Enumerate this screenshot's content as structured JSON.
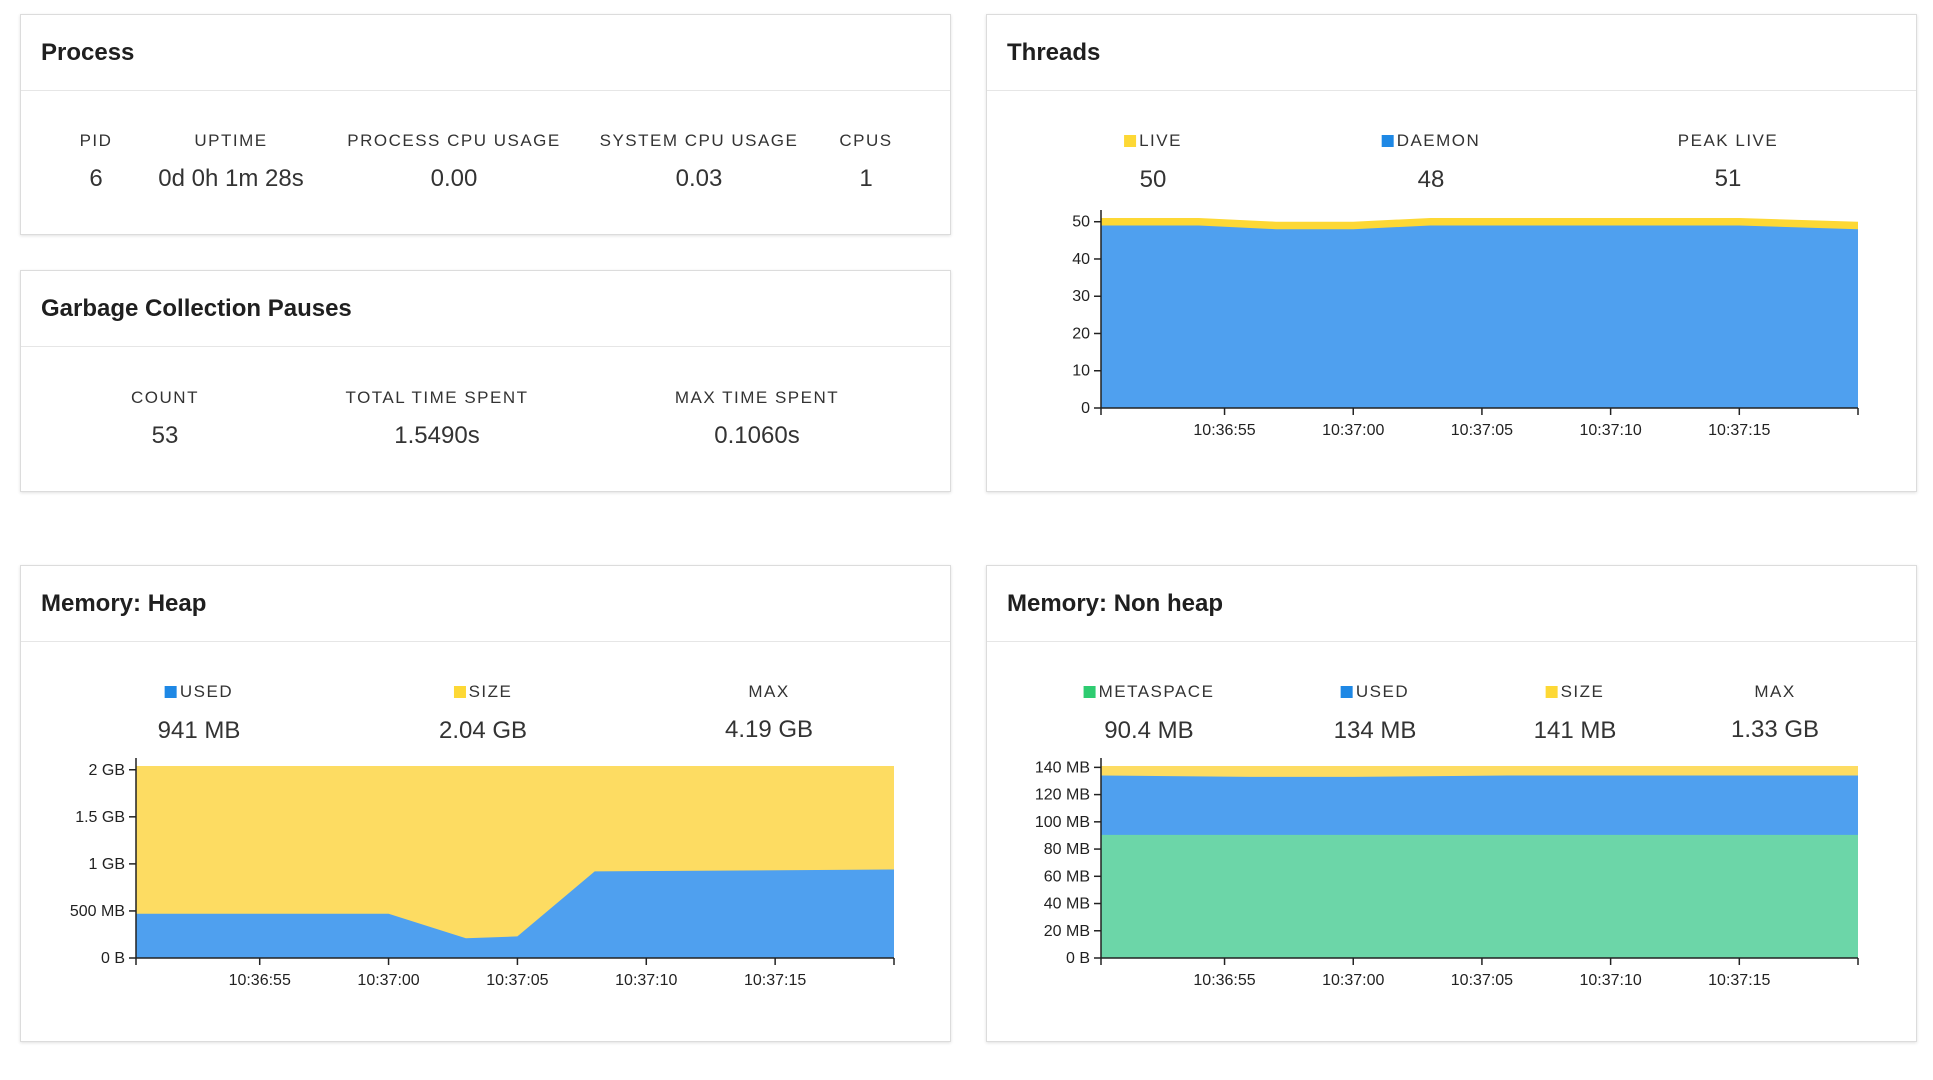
{
  "process": {
    "title": "Process",
    "stats": [
      {
        "label": "PID",
        "value": "6"
      },
      {
        "label": "UPTIME",
        "value": "0d 0h 1m 28s"
      },
      {
        "label": "PROCESS CPU USAGE",
        "value": "0.00"
      },
      {
        "label": "SYSTEM CPU USAGE",
        "value": "0.03"
      },
      {
        "label": "CPUS",
        "value": "1"
      }
    ]
  },
  "gc": {
    "title": "Garbage Collection Pauses",
    "stats": [
      {
        "label": "COUNT",
        "value": "53"
      },
      {
        "label": "TOTAL TIME SPENT",
        "value": "1.5490s"
      },
      {
        "label": "MAX TIME SPENT",
        "value": "0.1060s"
      }
    ]
  },
  "threads": {
    "title": "Threads",
    "stats": [
      {
        "label": "LIVE",
        "value": "50",
        "color": "#fdd835"
      },
      {
        "label": "DAEMON",
        "value": "48",
        "color": "#1e88e5"
      },
      {
        "label": "PEAK LIVE",
        "value": "51"
      }
    ]
  },
  "heap": {
    "title": "Memory: Heap",
    "stats": [
      {
        "label": "USED",
        "value": "941 MB",
        "color": "#1e88e5"
      },
      {
        "label": "SIZE",
        "value": "2.04 GB",
        "color": "#fdd835"
      },
      {
        "label": "MAX",
        "value": "4.19 GB"
      }
    ]
  },
  "nonheap": {
    "title": "Memory: Non heap",
    "stats": [
      {
        "label": "METASPACE",
        "value": "90.4 MB",
        "color": "#2ecc71"
      },
      {
        "label": "USED",
        "value": "134 MB",
        "color": "#1e88e5"
      },
      {
        "label": "SIZE",
        "value": "141 MB",
        "color": "#fdd835"
      },
      {
        "label": "MAX",
        "value": "1.33 GB"
      }
    ]
  },
  "chart_data": [
    {
      "id": "threads",
      "type": "area",
      "x": [
        "10:36:51",
        "10:36:54",
        "10:36:57",
        "10:37:00",
        "10:37:03",
        "10:37:06",
        "10:37:09",
        "10:37:12",
        "10:37:15",
        "10:37:18"
      ],
      "xticks": [
        "10:36:55",
        "10:37:00",
        "10:37:05",
        "10:37:10",
        "10:37:15"
      ],
      "yticks": [
        "0",
        "10",
        "20",
        "30",
        "40",
        "50"
      ],
      "ylim": [
        0,
        51
      ],
      "series": [
        {
          "name": "LIVE",
          "color": "#fdd835",
          "values": [
            51,
            51,
            50,
            50,
            51,
            51,
            51,
            51,
            51,
            50
          ]
        },
        {
          "name": "DAEMON",
          "color": "#4fa0ef",
          "values": [
            49,
            49,
            48,
            48,
            49,
            49,
            49,
            49,
            49,
            48
          ]
        }
      ]
    },
    {
      "id": "heap",
      "type": "area",
      "x": [
        "10:36:51",
        "10:37:00",
        "10:37:03",
        "10:37:05",
        "10:37:08",
        "10:37:18"
      ],
      "xticks": [
        "10:36:55",
        "10:37:00",
        "10:37:05",
        "10:37:10",
        "10:37:15"
      ],
      "yticks": [
        "0 B",
        "500 MB",
        "1 GB",
        "1.5 GB",
        "2 GB"
      ],
      "ylim": [
        0,
        2.04
      ],
      "series": [
        {
          "name": "SIZE",
          "color": "#fddc62",
          "values": [
            2.04,
            2.04,
            2.04,
            2.04,
            2.04,
            2.04
          ]
        },
        {
          "name": "USED",
          "color": "#4fa0ef",
          "values": [
            0.47,
            0.47,
            0.21,
            0.23,
            0.92,
            0.94
          ]
        }
      ]
    },
    {
      "id": "nonheap",
      "type": "area",
      "x": [
        "10:36:51",
        "10:36:56",
        "10:37:00",
        "10:37:06",
        "10:37:12",
        "10:37:18"
      ],
      "xticks": [
        "10:36:55",
        "10:37:00",
        "10:37:05",
        "10:37:10",
        "10:37:15"
      ],
      "yticks": [
        "0 B",
        "20 MB",
        "40 MB",
        "60 MB",
        "80 MB",
        "100 MB",
        "120 MB",
        "140 MB"
      ],
      "ylim": [
        0,
        141
      ],
      "series": [
        {
          "name": "SIZE",
          "color": "#fddc62",
          "values": [
            141,
            141,
            141,
            141,
            141,
            141
          ]
        },
        {
          "name": "USED",
          "color": "#4fa0ef",
          "values": [
            134,
            133,
            133,
            134,
            134,
            134
          ]
        },
        {
          "name": "METASPACE",
          "color": "#6cd6a8",
          "values": [
            90.4,
            90.4,
            90.4,
            90.4,
            90.4,
            90.4
          ]
        }
      ]
    }
  ]
}
